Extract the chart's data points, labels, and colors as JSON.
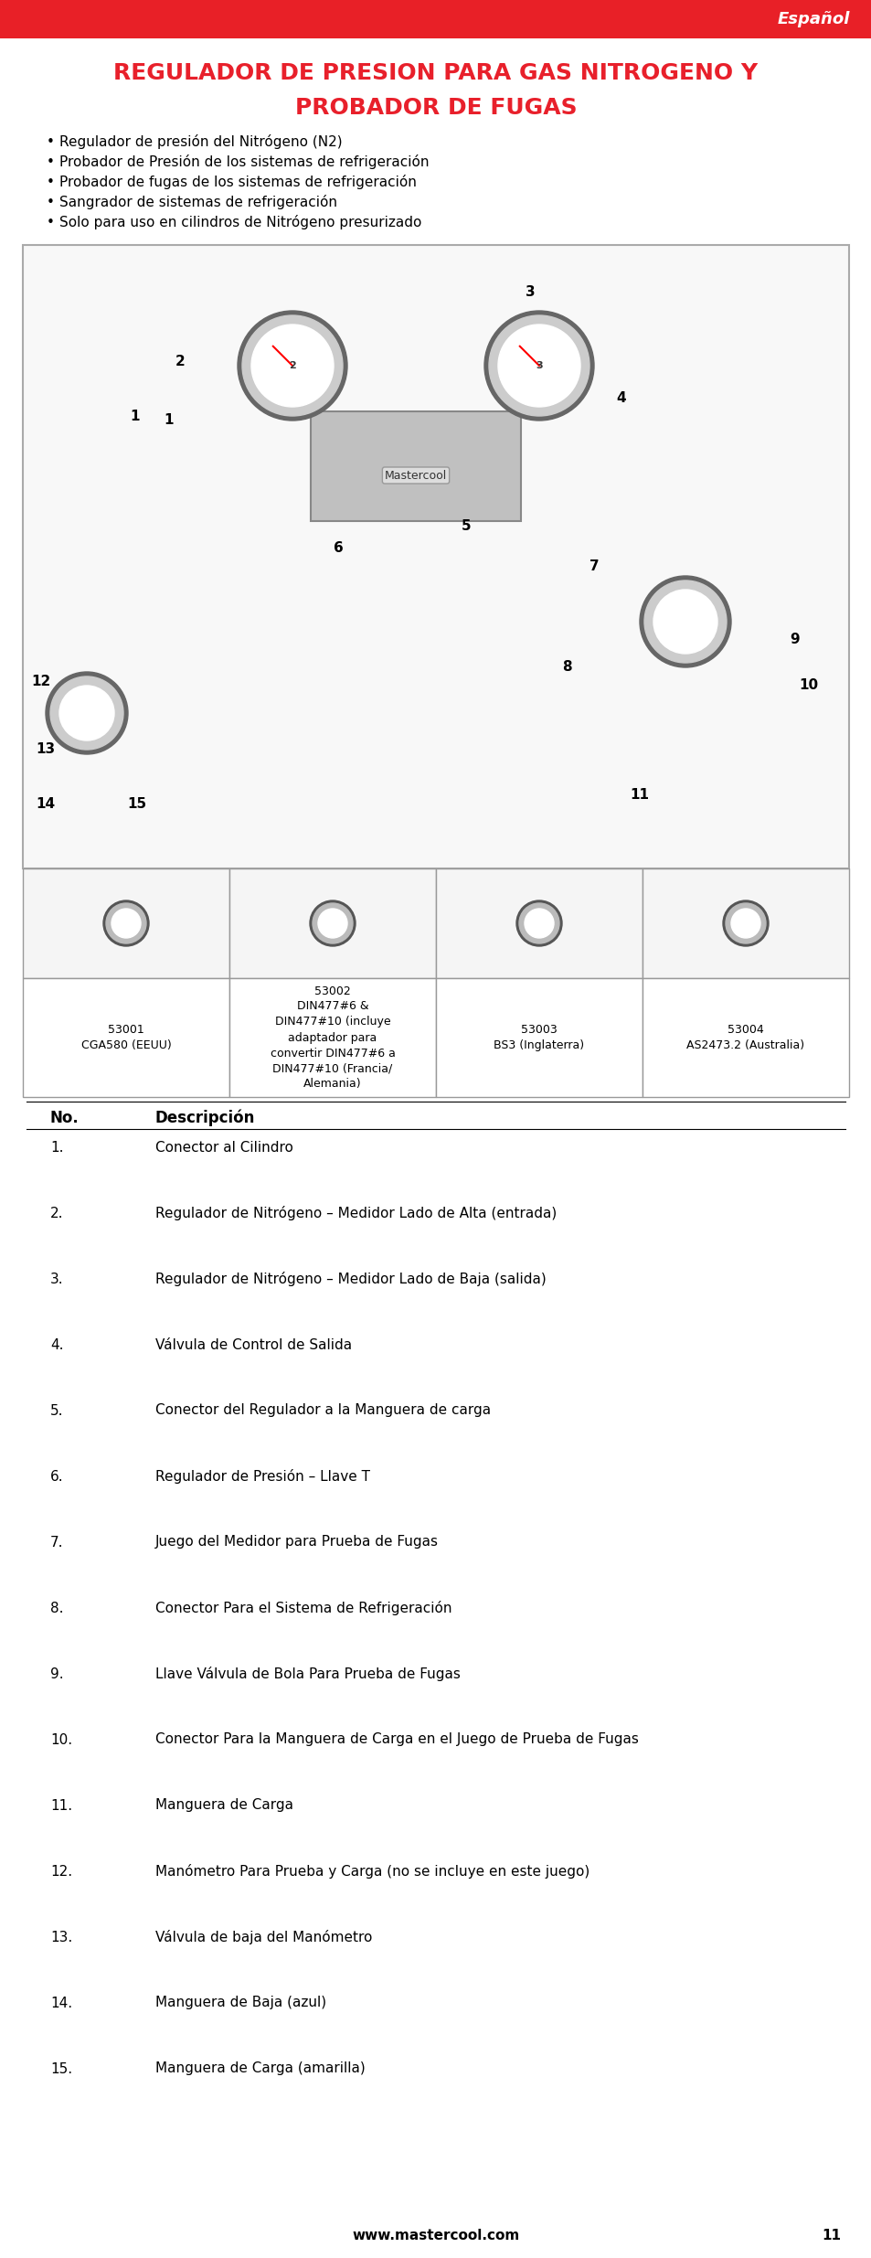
{
  "page_bg": "#ffffff",
  "header_bg": "#e82027",
  "header_text": "Español",
  "title_line1": "REGULADOR DE PRESION PARA GAS NITROGENO Y",
  "title_line2": "PROBADOR DE FUGAS",
  "title_color": "#e8202b",
  "bullets": [
    "Regulador de presión del Nitrógeno (N2)",
    "Probador de Presión de los sistemas de refrigeración",
    "Probador de fugas de los sistemas de refrigeración",
    "Sangrador de sistemas de refrigeración",
    "Solo para uso en cilindros de Nitrógeno presurizado"
  ],
  "image_placeholder_color": "#f0f0f0",
  "image_border_color": "#cccccc",
  "table_header_row": [
    "53001\nCGA580 (EEUU)",
    "53002\nDIN477#6 &\nDIN477#10 (incluye\nadaptador para\nconvertir DIN477#6 a\nDIN477#10 (Francia/\nAlemania)",
    "53003\nBS3 (Inglaterra)",
    "53004\nAS2473.2 (Australia)"
  ],
  "numbering_title": "No.",
  "description_title": "Descripción",
  "items": [
    [
      "1.",
      "Conector al Cilindro"
    ],
    [
      "2.",
      "Regulador de Nitrógeno – Medidor Lado de Alta (entrada)"
    ],
    [
      "3.",
      "Regulador de Nitrógeno – Medidor Lado de Baja (salida)"
    ],
    [
      "4.",
      "Válvula de Control de Salida"
    ],
    [
      "5.",
      "Conector del Regulador a la Manguera de carga"
    ],
    [
      "6.",
      "Regulador de Presión – Llave T"
    ],
    [
      "7.",
      "Juego del Medidor para Prueba de Fugas"
    ],
    [
      "8.",
      "Conector Para el Sistema de Refrigeración"
    ],
    [
      "9.",
      "Llave Válvula de Bola Para Prueba de Fugas"
    ],
    [
      "10.",
      "Conector Para la Manguera de Carga en el Juego de Prueba de Fugas"
    ],
    [
      "11.",
      "Manguera de Carga"
    ],
    [
      "12.",
      "Manómetro Para Prueba y Carga (no se incluye en este juego)"
    ],
    [
      "13.",
      "Válvula de baja del Manómetro"
    ],
    [
      "14.",
      "Manguera de Baja (azul)"
    ],
    [
      "15.",
      "Manguera de Carga (amarilla)"
    ]
  ],
  "footer_website": "www.mastercool.com",
  "footer_page": "11"
}
